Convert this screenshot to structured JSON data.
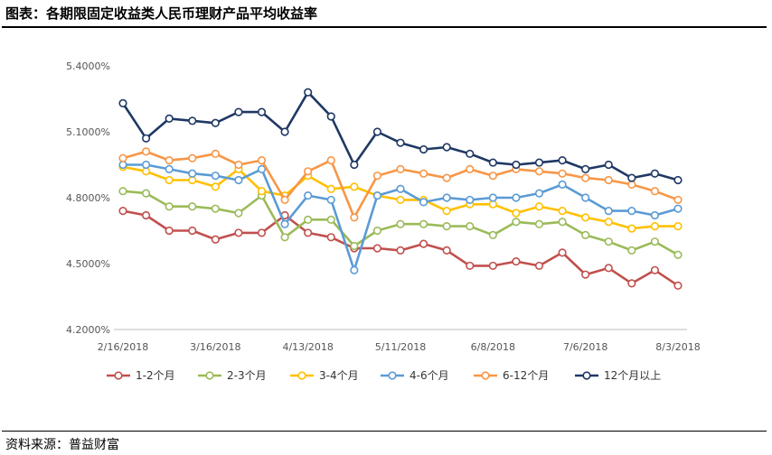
{
  "header": {
    "title": "图表：各期限固定收益类人民币理财产品平均收益率"
  },
  "footer": {
    "source": "资料来源：普益财富"
  },
  "chart_data": {
    "type": "line",
    "x": [
      "2/16/2018",
      "2/23/2018",
      "3/2/2018",
      "3/9/2018",
      "3/16/2018",
      "3/23/2018",
      "3/30/2018",
      "4/6/2018",
      "4/13/2018",
      "4/20/2018",
      "4/27/2018",
      "5/4/2018",
      "5/11/2018",
      "5/18/2018",
      "5/25/2018",
      "6/1/2018",
      "6/8/2018",
      "6/15/2018",
      "6/22/2018",
      "6/29/2018",
      "7/6/2018",
      "7/13/2018",
      "7/20/2018",
      "7/27/2018",
      "8/3/2018"
    ],
    "x_tick_labels": [
      "2/16/2018",
      "3/16/2018",
      "4/13/2018",
      "5/11/2018",
      "6/8/2018",
      "7/6/2018",
      "8/3/2018"
    ],
    "y_tick_labels": [
      "4.2000%",
      "4.5000%",
      "4.8000%",
      "5.1000%",
      "5.4000%"
    ],
    "ylim": [
      4.2,
      5.4
    ],
    "yticks": [
      4.2,
      4.5,
      4.8,
      5.1,
      5.4
    ],
    "legend_position": "bottom",
    "grid": false,
    "series": [
      {
        "name": "1-2个月",
        "color": "#C0504D",
        "values": [
          4.74,
          4.72,
          4.65,
          4.65,
          4.61,
          4.64,
          4.64,
          4.72,
          4.64,
          4.62,
          4.57,
          4.57,
          4.56,
          4.59,
          4.56,
          4.49,
          4.49,
          4.51,
          4.49,
          4.55,
          4.45,
          4.48,
          4.41,
          4.47,
          4.4
        ]
      },
      {
        "name": "2-3个月",
        "color": "#9BBB59",
        "values": [
          4.83,
          4.82,
          4.76,
          4.76,
          4.75,
          4.73,
          4.81,
          4.62,
          4.7,
          4.7,
          4.58,
          4.65,
          4.68,
          4.68,
          4.67,
          4.67,
          4.63,
          4.69,
          4.68,
          4.69,
          4.63,
          4.6,
          4.56,
          4.6,
          4.54
        ]
      },
      {
        "name": "3-4个月",
        "color": "#FFC000",
        "values": [
          4.94,
          4.92,
          4.88,
          4.88,
          4.85,
          4.93,
          4.83,
          4.81,
          4.9,
          4.84,
          4.85,
          4.81,
          4.79,
          4.79,
          4.74,
          4.77,
          4.77,
          4.73,
          4.76,
          4.74,
          4.71,
          4.69,
          4.66,
          4.67,
          4.67
        ]
      },
      {
        "name": "4-6个月",
        "color": "#5B9BD5",
        "values": [
          4.95,
          4.95,
          4.93,
          4.91,
          4.9,
          4.88,
          4.93,
          4.68,
          4.81,
          4.79,
          4.47,
          4.81,
          4.84,
          4.78,
          4.8,
          4.79,
          4.8,
          4.8,
          4.82,
          4.86,
          4.8,
          4.74,
          4.74,
          4.72,
          4.75
        ]
      },
      {
        "name": "6-12个月",
        "color": "#F79646",
        "values": [
          4.98,
          5.01,
          4.97,
          4.98,
          5.0,
          4.95,
          4.97,
          4.79,
          4.92,
          4.97,
          4.71,
          4.9,
          4.93,
          4.91,
          4.89,
          4.93,
          4.9,
          4.93,
          4.92,
          4.91,
          4.89,
          4.88,
          4.86,
          4.83,
          4.79
        ]
      },
      {
        "name": "12个月以上",
        "color": "#1F3864",
        "values": [
          5.23,
          5.07,
          5.16,
          5.15,
          5.14,
          5.19,
          5.19,
          5.1,
          5.28,
          5.17,
          4.95,
          5.1,
          5.05,
          5.02,
          5.03,
          5.0,
          4.96,
          4.95,
          4.96,
          4.97,
          4.93,
          4.95,
          4.89,
          4.91,
          4.88
        ]
      }
    ]
  }
}
